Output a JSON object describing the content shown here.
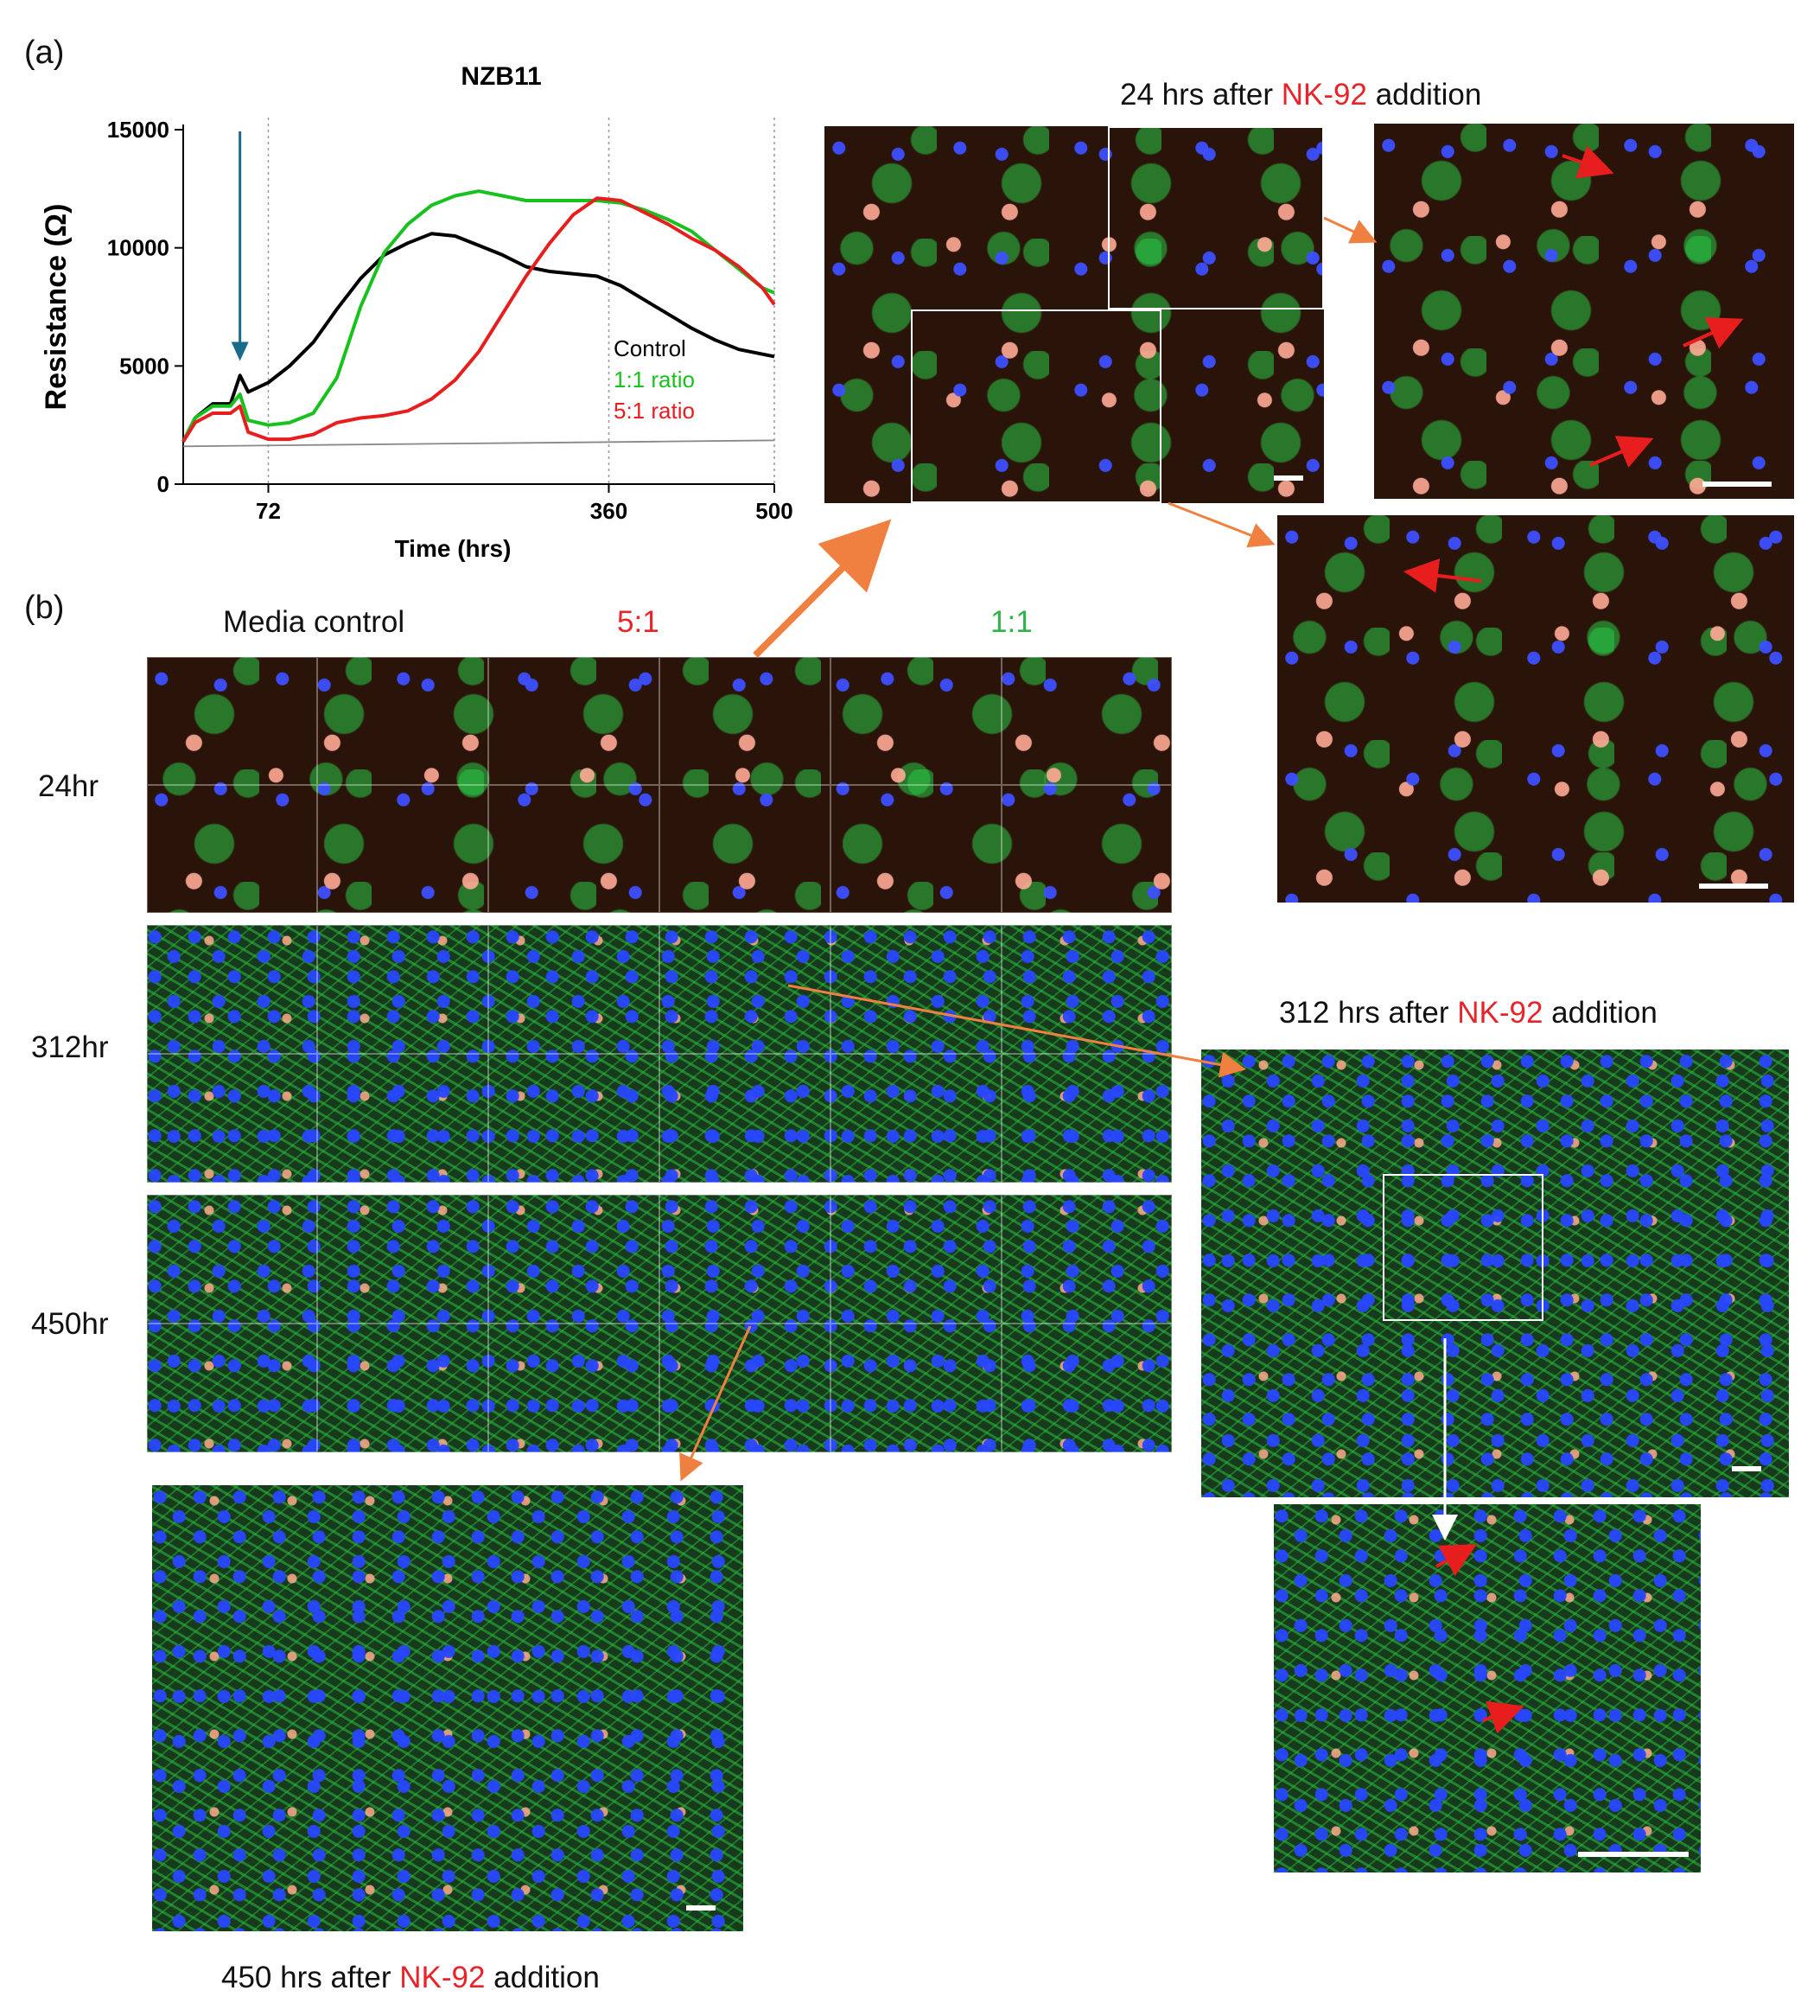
{
  "panel_a": {
    "label": "(a)"
  },
  "panel_b": {
    "label": "(b)"
  },
  "chart_data": {
    "type": "line",
    "title": "NZB11",
    "xlabel": "Time (hrs)",
    "ylabel": "Resistance (Ω)",
    "xlim": [
      0,
      500
    ],
    "ylim": [
      0,
      15000
    ],
    "yticks": [
      "0",
      "5000",
      "10000",
      "15000"
    ],
    "xticks": [
      "72",
      "360",
      "500"
    ],
    "xtick_values": [
      72,
      360,
      500
    ],
    "vlines": [
      72,
      360,
      500
    ],
    "arrow_at": 48,
    "series": [
      {
        "name": "Control",
        "color": "#000000",
        "x": [
          0,
          10,
          25,
          40,
          48,
          55,
          72,
          90,
          110,
          130,
          150,
          170,
          190,
          210,
          230,
          250,
          270,
          290,
          310,
          330,
          350,
          370,
          390,
          410,
          430,
          450,
          470,
          490,
          500
        ],
        "y": [
          1800,
          2800,
          3400,
          3400,
          4600,
          3900,
          4300,
          5000,
          6000,
          7400,
          8700,
          9700,
          10200,
          10600,
          10500,
          10100,
          9700,
          9200,
          9000,
          8900,
          8800,
          8400,
          7800,
          7200,
          6600,
          6100,
          5700,
          5500,
          5400
        ]
      },
      {
        "name": "1:1 ratio",
        "color": "#18c21e",
        "x": [
          0,
          10,
          25,
          40,
          48,
          55,
          72,
          90,
          110,
          130,
          150,
          170,
          190,
          210,
          230,
          250,
          270,
          290,
          310,
          330,
          350,
          370,
          390,
          410,
          430,
          450,
          470,
          490,
          500
        ],
        "y": [
          1800,
          2800,
          3300,
          3300,
          3800,
          2700,
          2500,
          2600,
          3000,
          4500,
          7500,
          9800,
          11000,
          11800,
          12200,
          12400,
          12200,
          12000,
          12000,
          12000,
          12000,
          11900,
          11600,
          11200,
          10700,
          9900,
          9100,
          8300,
          8100
        ]
      },
      {
        "name": "5:1 ratio",
        "color": "#e81d1d",
        "x": [
          0,
          10,
          25,
          40,
          48,
          55,
          72,
          90,
          110,
          130,
          150,
          170,
          190,
          210,
          230,
          250,
          270,
          290,
          310,
          330,
          350,
          370,
          390,
          410,
          430,
          450,
          470,
          490,
          500
        ],
        "y": [
          1800,
          2600,
          3000,
          3000,
          3300,
          2200,
          1900,
          1900,
          2100,
          2600,
          2800,
          2900,
          3100,
          3600,
          4400,
          5600,
          7200,
          8800,
          10200,
          11400,
          12100,
          12000,
          11500,
          11000,
          10400,
          9900,
          9200,
          8300,
          7600
        ]
      },
      {
        "name": "",
        "color": "#888888",
        "x": [
          0,
          100,
          200,
          300,
          400,
          500
        ],
        "y": [
          1600,
          1650,
          1700,
          1750,
          1800,
          1850
        ]
      }
    ],
    "legend": [
      "Control",
      "1:1 ratio",
      "5:1 ratio"
    ],
    "legend_placement": "lower-right"
  },
  "top_caption": {
    "prefix": "24 hrs after ",
    "highlight": "NK-92",
    "suffix": " addition"
  },
  "mid_caption": {
    "prefix": "312 hrs after ",
    "highlight": "NK-92",
    "suffix": " addition"
  },
  "bottom_caption": {
    "prefix": "450 hrs after ",
    "highlight": "NK-92",
    "suffix": " addition"
  },
  "montage": {
    "headers": {
      "control": "Media control",
      "r51": "5:1",
      "r11": "1:1"
    },
    "rows": [
      "24hr",
      "312hr",
      "450hr"
    ]
  }
}
